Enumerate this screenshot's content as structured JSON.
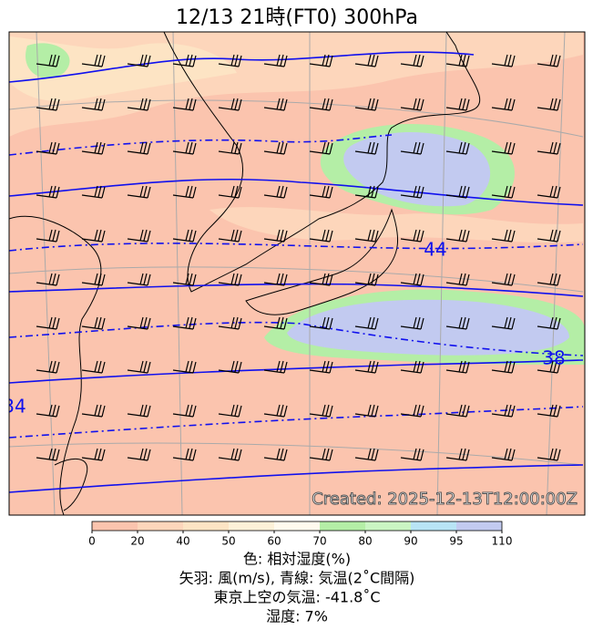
{
  "title": "12/13  21時(FT0)     300hPa",
  "contour_labels": [
    "44",
    "38",
    "34"
  ],
  "created": "Created: 2025-12-13T12:00:00Z",
  "colorbar": {
    "ticks": [
      0,
      20,
      40,
      50,
      60,
      70,
      80,
      90,
      95,
      110
    ],
    "colors": [
      "#fbc4ae",
      "#fdd6bb",
      "#fde4c4",
      "#fdf1d8",
      "#fffaee",
      "#b4eea6",
      "#caf5c3",
      "#b8e4f5",
      "#c2caf0"
    ]
  },
  "legend_lines": [
    "色: 相対湿度(%)",
    "矢羽: 風(m/s),  青線: 気温(2˚C間隔)",
    "東京上空の気温: -41.8˚C",
    "湿度: 7%"
  ]
}
